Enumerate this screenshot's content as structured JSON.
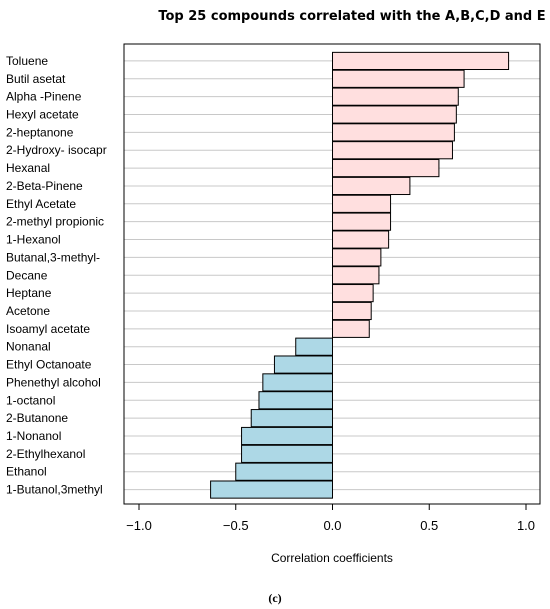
{
  "chart_data": {
    "type": "bar",
    "orientation": "horizontal",
    "title": "Top 25 compounds correlated with the  A,B,C,D and E",
    "xlabel": "Correlation coefficients",
    "ylabel": "",
    "xlim": [
      -1.1,
      1.1
    ],
    "xticks": [
      -1.0,
      -0.5,
      0.0,
      0.5,
      1.0
    ],
    "xtick_labels": [
      "−1.0",
      "−0.5",
      "0.0",
      "0.5",
      "1.0"
    ],
    "grid": true,
    "categories": [
      "Toluene",
      "Butil asetat",
      "Alpha -Pinene",
      "Hexyl acetate",
      "2-heptanone",
      "2-Hydroxy- isocapr",
      "Hexanal",
      "2-Beta-Pinene",
      "Ethyl Acetate",
      "2-methyl propionic",
      "1-Hexanol",
      "Butanal,3-methyl-",
      "Decane",
      "Heptane",
      "Acetone",
      "Isoamyl acetate",
      "Nonanal",
      "Ethyl Octanoate",
      "Phenethyl alcohol",
      "1-octanol",
      "2-Butanone",
      "1-Nonanol",
      "2-Ethylhexanol",
      "Ethanol",
      "1-Butanol,3methyl"
    ],
    "values": [
      0.91,
      0.68,
      0.65,
      0.64,
      0.63,
      0.62,
      0.55,
      0.4,
      0.3,
      0.3,
      0.29,
      0.25,
      0.24,
      0.21,
      0.2,
      0.19,
      -0.19,
      -0.3,
      -0.36,
      -0.38,
      -0.42,
      -0.47,
      -0.47,
      -0.5,
      -0.63
    ],
    "colors": {
      "positive": "#ffdfdf",
      "negative": "#add8e6",
      "edge": "#000000",
      "grid": "#c8c8c8"
    }
  },
  "caption": "(c)"
}
